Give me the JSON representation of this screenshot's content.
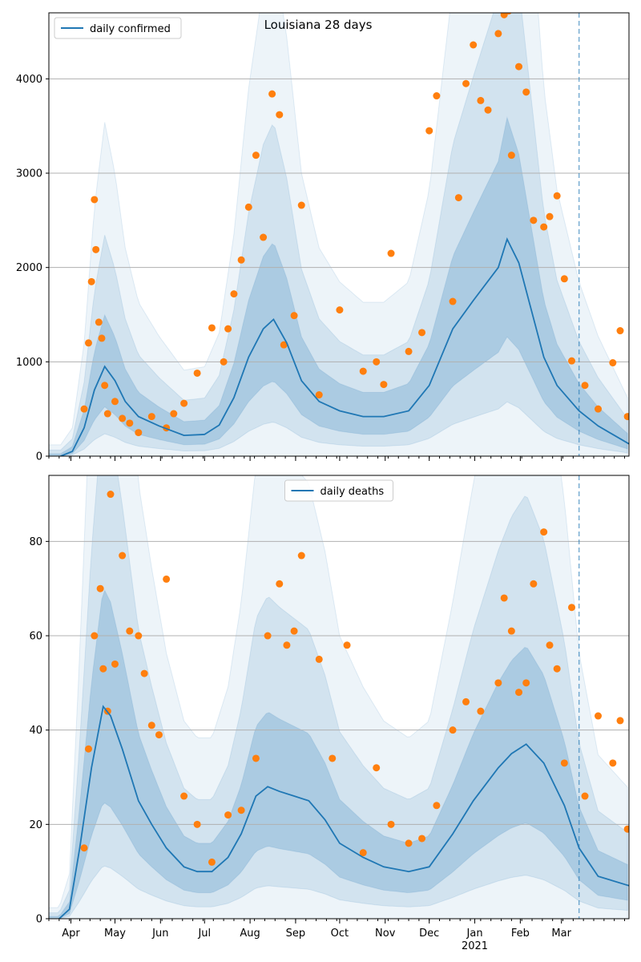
{
  "figure_title": "Louisiana 28 days",
  "colors": {
    "line": "#1f77b4",
    "points": "#ff7f0e",
    "band": "#1f77b4",
    "grid": "#b0b0b0",
    "vline": "#1f77b4"
  },
  "x_ticks": [
    {
      "label": "Apr",
      "day": 15
    },
    {
      "label": "May",
      "day": 45
    },
    {
      "label": "Jun",
      "day": 76
    },
    {
      "label": "Jul",
      "day": 106
    },
    {
      "label": "Aug",
      "day": 137
    },
    {
      "label": "Sep",
      "day": 168
    },
    {
      "label": "Oct",
      "day": 198
    },
    {
      "label": "Nov",
      "day": 229
    },
    {
      "label": "Dec",
      "day": 259
    },
    {
      "label": "Jan",
      "day": 290
    },
    {
      "label": "Feb",
      "day": 321
    },
    {
      "label": "Mar",
      "day": 349
    }
  ],
  "year_label": "2021",
  "chart_data": [
    {
      "type": "line",
      "title": "Louisiana 28 days",
      "legend": "top-left",
      "grid": "y",
      "xlabel": "",
      "ylabel": "",
      "ylim": [
        0,
        4700
      ],
      "y_ticks": [
        0,
        1000,
        2000,
        3000,
        4000
      ],
      "xlim": [
        "2020-03-01",
        "2021-03-31"
      ],
      "vline_date": "2021-02-25",
      "series": [
        {
          "name": "daily confirmed",
          "kind": "line",
          "x": [
            "2020-03-09",
            "2020-03-17",
            "2020-03-25",
            "2020-04-01",
            "2020-04-08",
            "2020-04-15",
            "2020-04-22",
            "2020-05-01",
            "2020-05-15",
            "2020-06-01",
            "2020-06-15",
            "2020-06-25",
            "2020-07-05",
            "2020-07-15",
            "2020-07-25",
            "2020-08-01",
            "2020-08-10",
            "2020-08-20",
            "2020-09-01",
            "2020-09-15",
            "2020-10-01",
            "2020-10-15",
            "2020-11-01",
            "2020-11-15",
            "2020-12-01",
            "2020-12-15",
            "2021-01-01",
            "2021-01-07",
            "2021-01-15",
            "2021-02-01",
            "2021-02-10",
            "2021-02-25",
            "2021-03-10",
            "2021-03-31"
          ],
          "values": [
            0,
            50,
            300,
            700,
            950,
            800,
            580,
            420,
            320,
            220,
            230,
            330,
            620,
            1050,
            1350,
            1450,
            1200,
            800,
            580,
            480,
            420,
            420,
            480,
            750,
            1350,
            1650,
            2000,
            2300,
            2050,
            1050,
            750,
            480,
            320,
            130
          ]
        },
        {
          "name": "",
          "kind": "points",
          "x": [
            "2020-03-25",
            "2020-03-28",
            "2020-03-30",
            "2020-04-01",
            "2020-04-02",
            "2020-04-04",
            "2020-04-06",
            "2020-04-08",
            "2020-04-10",
            "2020-04-15",
            "2020-04-20",
            "2020-04-25",
            "2020-05-01",
            "2020-05-10",
            "2020-05-20",
            "2020-05-25",
            "2020-06-01",
            "2020-06-10",
            "2020-06-20",
            "2020-06-28",
            "2020-07-01",
            "2020-07-05",
            "2020-07-10",
            "2020-07-15",
            "2020-07-20",
            "2020-07-25",
            "2020-07-31",
            "2020-08-05",
            "2020-08-08",
            "2020-08-15",
            "2020-08-20",
            "2020-09-01",
            "2020-09-15",
            "2020-10-01",
            "2020-10-10",
            "2020-10-15",
            "2020-10-20",
            "2020-11-01",
            "2020-11-10",
            "2020-11-15",
            "2020-11-20",
            "2020-12-01",
            "2020-12-05",
            "2020-12-10",
            "2020-12-15",
            "2020-12-20",
            "2020-12-25",
            "2021-01-01",
            "2021-01-05",
            "2021-01-08",
            "2021-01-10",
            "2021-01-15",
            "2021-01-20",
            "2021-01-25",
            "2021-02-01",
            "2021-02-05",
            "2021-02-10",
            "2021-02-15",
            "2021-02-20",
            "2021-03-01",
            "2021-03-10",
            "2021-03-20",
            "2021-03-25",
            "2021-03-30"
          ],
          "values": [
            500,
            1200,
            1850,
            2720,
            2190,
            1420,
            1250,
            750,
            450,
            580,
            400,
            350,
            250,
            420,
            300,
            450,
            560,
            880,
            1360,
            1000,
            1350,
            1720,
            2080,
            2640,
            3190,
            2320,
            3840,
            3620,
            1180,
            1490,
            2660,
            650,
            1550,
            900,
            1000,
            760,
            2150,
            1110,
            1310,
            3450,
            3820,
            1640,
            2740,
            3950,
            4360,
            3770,
            3670,
            4480,
            4680,
            4720,
            3190,
            4130,
            3860,
            2500,
            2430,
            2540,
            2760,
            1880,
            1010,
            750,
            500,
            990,
            1330,
            420
          ]
        }
      ]
    },
    {
      "type": "line",
      "legend": "top-center",
      "grid": "y",
      "xlabel": "",
      "ylabel": "",
      "ylim": [
        0,
        94
      ],
      "y_ticks": [
        0,
        20,
        40,
        60,
        80
      ],
      "xlim": [
        "2020-03-01",
        "2021-03-31"
      ],
      "vline_date": "2021-02-25",
      "series": [
        {
          "name": "daily deaths",
          "kind": "line",
          "x": [
            "2020-03-08",
            "2020-03-15",
            "2020-03-22",
            "2020-03-30",
            "2020-04-07",
            "2020-04-12",
            "2020-04-20",
            "2020-05-01",
            "2020-05-10",
            "2020-05-20",
            "2020-06-01",
            "2020-06-10",
            "2020-06-20",
            "2020-07-01",
            "2020-07-10",
            "2020-07-20",
            "2020-07-28",
            "2020-08-05",
            "2020-08-15",
            "2020-08-25",
            "2020-09-05",
            "2020-09-15",
            "2020-10-01",
            "2020-10-15",
            "2020-11-01",
            "2020-11-15",
            "2020-12-01",
            "2020-12-15",
            "2021-01-01",
            "2021-01-10",
            "2021-01-20",
            "2021-02-01",
            "2021-02-15",
            "2021-02-25",
            "2021-03-10",
            "2021-03-31"
          ],
          "values": [
            0,
            2,
            15,
            32,
            45,
            43,
            36,
            25,
            20,
            15,
            11,
            10,
            10,
            13,
            18,
            26,
            28,
            27,
            26,
            25,
            21,
            16,
            13,
            11,
            10,
            11,
            18,
            25,
            32,
            35,
            37,
            33,
            24,
            15,
            9,
            7
          ]
        },
        {
          "name": "",
          "kind": "points",
          "x": [
            "2020-03-25",
            "2020-03-28",
            "2020-04-01",
            "2020-04-05",
            "2020-04-07",
            "2020-04-10",
            "2020-04-12",
            "2020-04-15",
            "2020-04-20",
            "2020-04-25",
            "2020-05-01",
            "2020-05-05",
            "2020-05-10",
            "2020-05-15",
            "2020-05-20",
            "2020-06-01",
            "2020-06-10",
            "2020-06-20",
            "2020-07-01",
            "2020-07-10",
            "2020-07-20",
            "2020-07-28",
            "2020-08-05",
            "2020-08-10",
            "2020-08-15",
            "2020-08-20",
            "2020-09-01",
            "2020-09-10",
            "2020-09-20",
            "2020-10-01",
            "2020-10-10",
            "2020-10-20",
            "2020-11-01",
            "2020-11-10",
            "2020-11-20",
            "2020-12-01",
            "2020-12-10",
            "2020-12-20",
            "2021-01-01",
            "2021-01-05",
            "2021-01-10",
            "2021-01-15",
            "2021-01-20",
            "2021-01-25",
            "2021-02-01",
            "2021-02-05",
            "2021-02-10",
            "2021-02-15",
            "2021-02-20",
            "2021-03-01",
            "2021-03-10",
            "2021-03-20",
            "2021-03-25",
            "2021-03-30"
          ],
          "values": [
            15,
            36,
            60,
            70,
            53,
            44,
            90,
            54,
            77,
            61,
            60,
            52,
            41,
            39,
            72,
            26,
            20,
            12,
            22,
            23,
            34,
            60,
            71,
            58,
            61,
            77,
            55,
            34,
            58,
            14,
            32,
            20,
            16,
            17,
            24,
            40,
            46,
            44,
            50,
            68,
            61,
            48,
            50,
            71,
            82,
            58,
            53,
            33,
            66,
            26,
            43,
            33,
            42,
            19
          ]
        }
      ]
    }
  ]
}
